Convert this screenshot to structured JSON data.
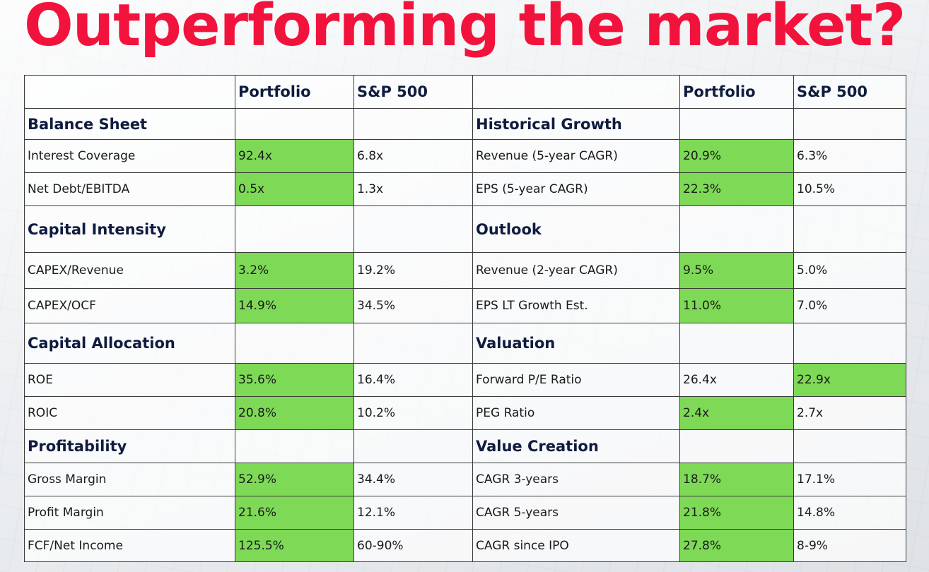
{
  "title": "Outperforming the market?",
  "colors": {
    "title": "#f2133d",
    "highlight": "#7ed957",
    "heading": "#0f1c3f"
  },
  "header": [
    "",
    "Portfolio",
    "S&P 500",
    "",
    "Portfolio",
    "S&P 500"
  ],
  "rows": [
    [
      "Balance Sheet",
      "",
      "",
      "Historical Growth",
      "",
      ""
    ],
    [
      "Interest Coverage",
      "92.4x",
      "6.8x",
      "Revenue (5-year CAGR)",
      "20.9%",
      "6.3%"
    ],
    [
      "Net Debt/EBITDA",
      "0.5x",
      "1.3x",
      "EPS (5-year CAGR)",
      "22.3%",
      "10.5%"
    ],
    [
      "Capital Intensity",
      "",
      "",
      "Outlook",
      "",
      ""
    ],
    [
      "CAPEX/Revenue",
      "3.2%",
      "19.2%",
      "Revenue (2-year CAGR)",
      "9.5%",
      "5.0%"
    ],
    [
      "CAPEX/OCF",
      "14.9%",
      "34.5%",
      "EPS LT Growth Est.",
      "11.0%",
      "7.0%"
    ],
    [
      "Capital Allocation",
      "",
      "",
      "Valuation",
      "",
      ""
    ],
    [
      "ROE",
      "35.6%",
      "16.4%",
      "Forward P/E Ratio",
      "26.4x",
      "22.9x"
    ],
    [
      "ROIC",
      "20.8%",
      "10.2%",
      "PEG Ratio",
      "2.4x",
      "2.7x"
    ],
    [
      "Profitability",
      "",
      "",
      "Value Creation",
      "",
      ""
    ],
    [
      "Gross Margin",
      "52.9%",
      "34.4%",
      "CAGR 3-years",
      "18.7%",
      "17.1%"
    ],
    [
      "Profit Margin",
      "21.6%",
      "12.1%",
      "CAGR 5-years",
      "21.8%",
      "14.8%"
    ],
    [
      "FCF/Net Income",
      "125.5%",
      "60-90%",
      "CAGR since IPO",
      "27.8%",
      "8-9%"
    ]
  ]
}
